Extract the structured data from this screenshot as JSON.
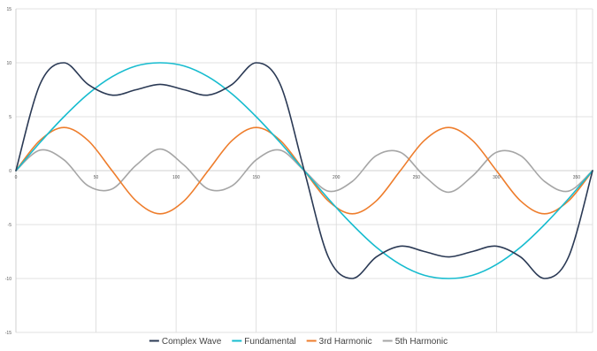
{
  "chart_data": {
    "type": "line",
    "title": "",
    "xlabel": "",
    "ylabel": "",
    "xlim": [
      0,
      360
    ],
    "ylim": [
      -15,
      15
    ],
    "x_ticks": [
      0,
      50,
      100,
      150,
      200,
      250,
      300,
      350
    ],
    "y_ticks": [
      15,
      10,
      5,
      0,
      -5,
      -10,
      -15
    ],
    "x_tick_labels": [
      "0",
      "50",
      "100",
      "150",
      "200",
      "250",
      "300",
      "350"
    ],
    "y_tick_labels": [
      "15",
      "10",
      "5",
      "0",
      "-5",
      "-10",
      "-15"
    ],
    "grid": true,
    "legend_position": "bottom",
    "x": [
      0,
      15,
      30,
      45,
      60,
      75,
      90,
      105,
      120,
      135,
      150,
      165,
      180,
      195,
      210,
      225,
      240,
      255,
      270,
      285,
      300,
      315,
      330,
      345,
      360
    ],
    "series": [
      {
        "name": "Complex Wave",
        "color": "#2b3a55",
        "values": [
          0,
          8.0,
          10.0,
          8.0,
          7.0,
          7.5,
          8.0,
          7.5,
          7.0,
          8.0,
          10.0,
          8.0,
          0,
          -8.0,
          -10.0,
          -8.0,
          -7.0,
          -7.5,
          -8.0,
          -7.5,
          -7.0,
          -8.0,
          -10.0,
          -8.0,
          0
        ]
      },
      {
        "name": "Fundamental",
        "color": "#17bccf",
        "values": [
          0,
          2.6,
          5.0,
          7.1,
          8.7,
          9.7,
          10.0,
          9.7,
          8.7,
          7.1,
          5.0,
          2.6,
          0,
          -2.6,
          -5.0,
          -7.1,
          -8.7,
          -9.7,
          -10.0,
          -9.7,
          -8.7,
          -7.1,
          -5.0,
          -2.6,
          0
        ]
      },
      {
        "name": "3rd Harmonic",
        "color": "#ee7d2c",
        "values": [
          0,
          2.8,
          4.0,
          2.8,
          0,
          -2.8,
          -4.0,
          -2.8,
          0,
          2.8,
          4.0,
          2.8,
          0,
          -2.8,
          -4.0,
          -2.8,
          0,
          2.8,
          4.0,
          2.8,
          0,
          -2.8,
          -4.0,
          -2.8,
          0
        ]
      },
      {
        "name": "5th Harmonic",
        "color": "#a6a6a6",
        "values": [
          0,
          1.9,
          1.0,
          -1.4,
          -1.7,
          0.5,
          2.0,
          0.5,
          -1.7,
          -1.4,
          1.0,
          1.9,
          0,
          -1.9,
          -1.0,
          1.4,
          1.7,
          -0.5,
          -2.0,
          -0.5,
          1.7,
          1.4,
          -1.0,
          -1.9,
          0
        ]
      }
    ]
  }
}
